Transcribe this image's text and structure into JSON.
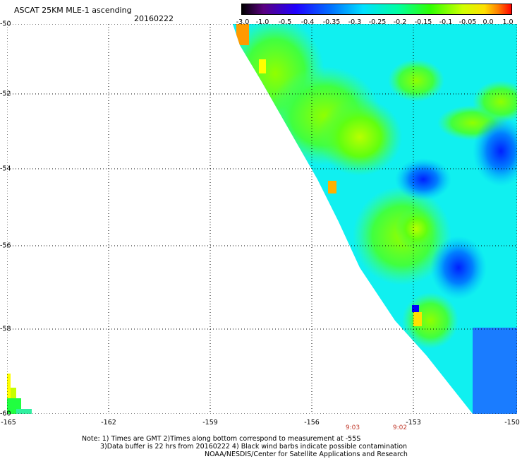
{
  "title": "ASCAT 25KM MLE-1 ascending",
  "date": "20160222",
  "colorbar": {
    "labels": [
      "-3.0",
      "-1.0",
      "-0.5",
      "-0.4",
      "-0.35",
      "-0.3",
      "-0.25",
      "-0.2",
      "-0.15",
      "-0.1",
      "-0.05",
      "0.0",
      "1.0"
    ],
    "colors": [
      "#000000",
      "#5a0080",
      "#3a00ff",
      "#0050ff",
      "#0090ff",
      "#00d8ff",
      "#00ffb0",
      "#00ff40",
      "#50ff00",
      "#b0ff00",
      "#ffff00",
      "#ff8000",
      "#ff0000"
    ]
  },
  "map": {
    "lat_labels": [
      "-50",
      "-52",
      "-54",
      "-56",
      "-58",
      "-60"
    ],
    "lon_labels": [
      "-165",
      "-162",
      "-159",
      "-156",
      "-153",
      "-150"
    ],
    "lat_range": [
      -60,
      -50
    ],
    "lon_range": [
      -165,
      -150
    ]
  },
  "times": [
    "9:03",
    "9:02"
  ],
  "notes": {
    "line1": "Note: 1) Times are GMT 2)Times along bottom correspond to measurement at -55S",
    "line2": "3)Data buffer is 22 hrs from 20160222 4) Black wind barbs indicate possible contamination",
    "line3": "NOAA/NESDIS/Center for Satellite Applications and Research"
  }
}
